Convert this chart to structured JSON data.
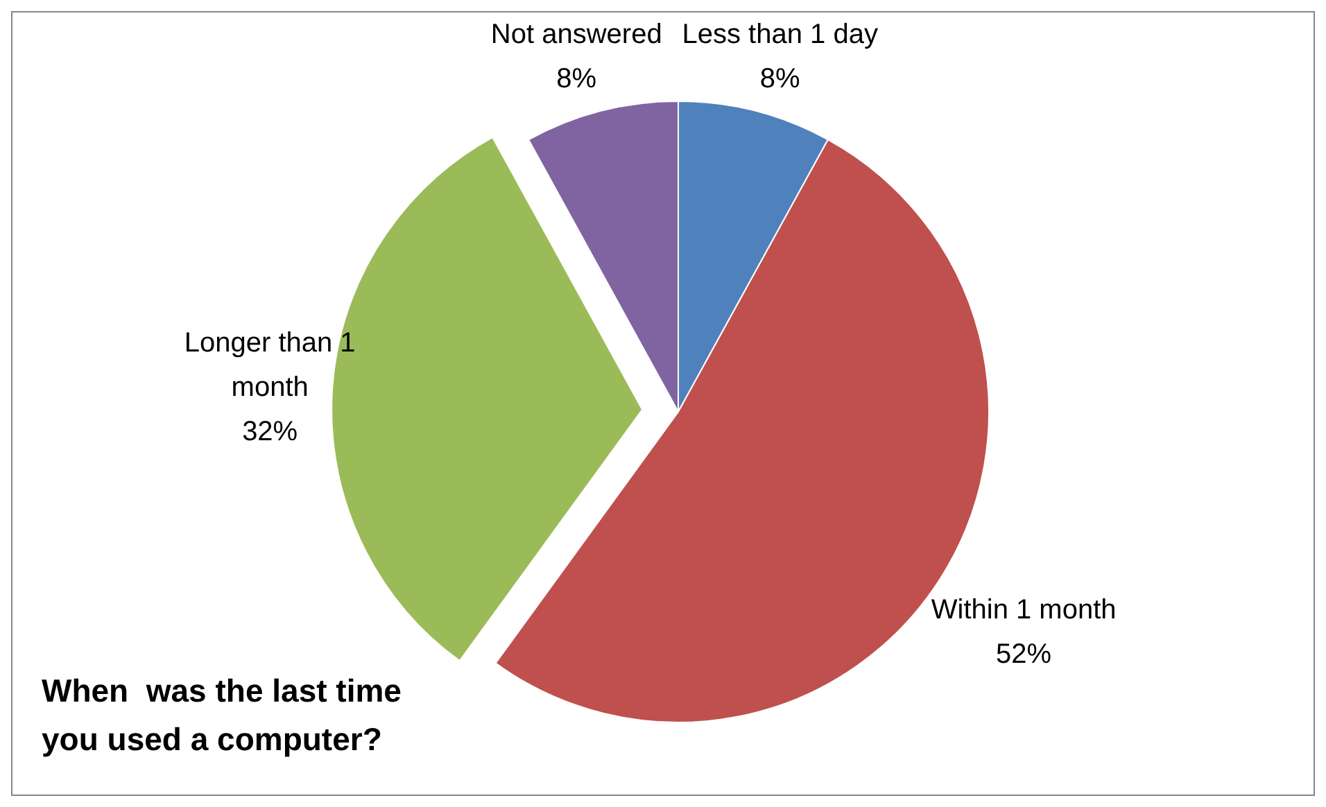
{
  "chart_data": {
    "type": "pie",
    "title": "When  was the last time you used a computer?",
    "categories": [
      "Less than 1 day",
      "Within 1 month",
      "Longer than 1 month",
      "Not answered"
    ],
    "values": [
      8,
      52,
      32,
      8
    ],
    "colors": [
      "#4f81bd",
      "#c0504d",
      "#9bbb59",
      "#8064a2"
    ],
    "value_labels": [
      "8%",
      "52%",
      "32%",
      "8%"
    ]
  }
}
